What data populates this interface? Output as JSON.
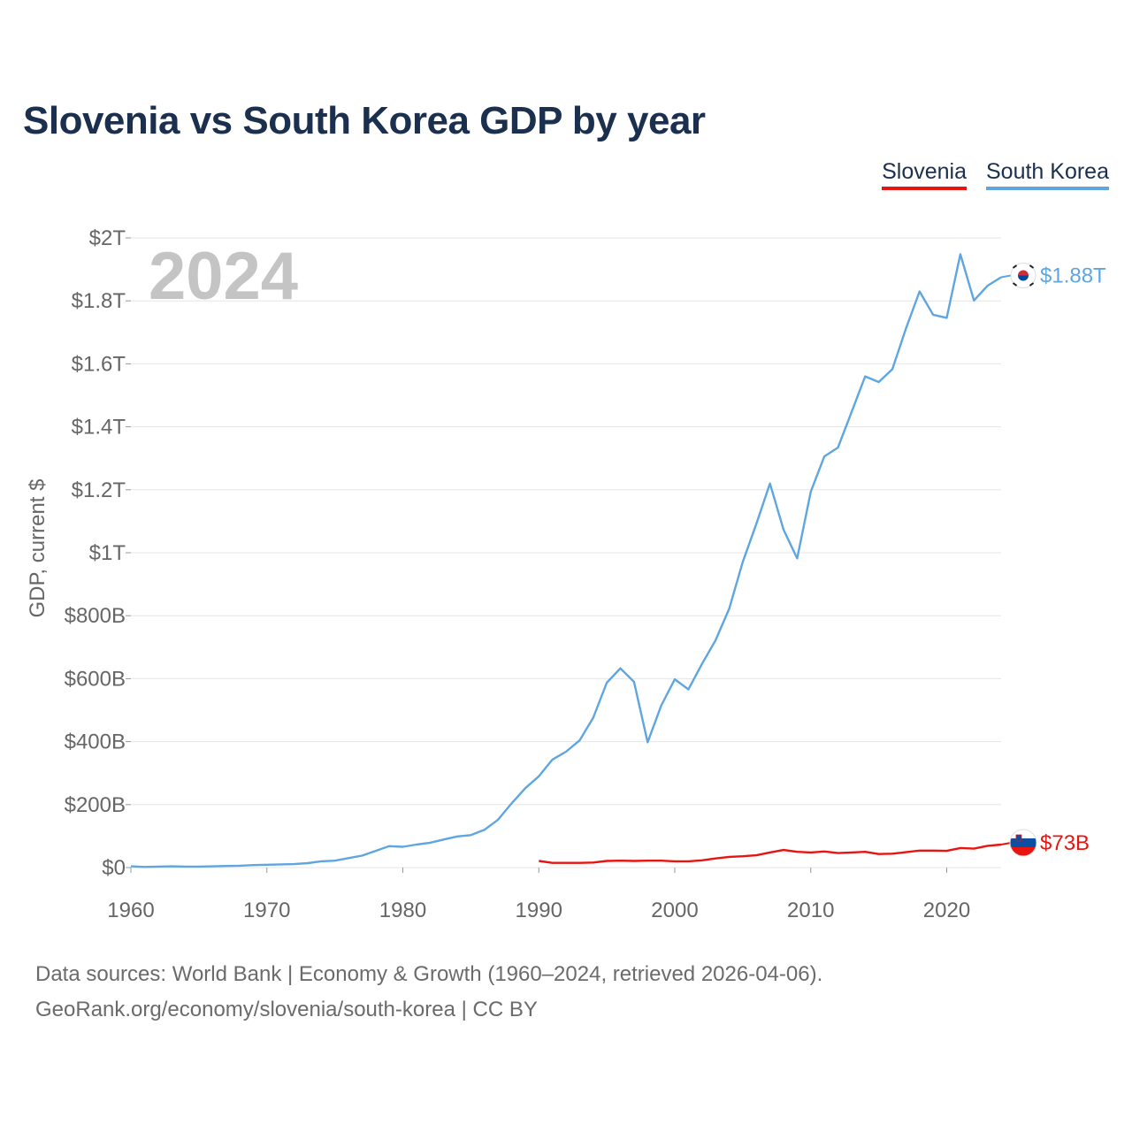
{
  "title": "Slovenia vs South Korea GDP by year",
  "legend": {
    "slovenia": "Slovenia",
    "south_korea": "South Korea"
  },
  "current_year": "2024",
  "end_labels": {
    "south_korea": "$1.88T",
    "slovenia": "$73B"
  },
  "source": {
    "line1": "Data sources: World Bank | Economy & Growth (1960–2024, retrieved 2026-04-06).",
    "line2": "GeoRank.org/economy/slovenia/south-korea | CC BY"
  },
  "colors": {
    "slovenia": "#e8140f",
    "south_korea": "#5fa6e0",
    "title": "#1b2f4e",
    "grid": "#e6e6e6",
    "axis_text": "#666666",
    "year_watermark": "#c4c4c4"
  },
  "chart_data": {
    "type": "line",
    "title": "Slovenia vs South Korea GDP by year",
    "xlabel": "",
    "ylabel": "GDP, current $",
    "xlim": [
      1960,
      2024
    ],
    "ylim": [
      0,
      2000
    ],
    "y_unit": "billion USD",
    "x_ticks": [
      1960,
      1970,
      1980,
      1990,
      2000,
      2010,
      2020
    ],
    "y_ticks": [
      {
        "value": 0,
        "label": "$0"
      },
      {
        "value": 200,
        "label": "$200B"
      },
      {
        "value": 400,
        "label": "$400B"
      },
      {
        "value": 600,
        "label": "$600B"
      },
      {
        "value": 800,
        "label": "$800B"
      },
      {
        "value": 1000,
        "label": "$1T"
      },
      {
        "value": 1200,
        "label": "$1.2T"
      },
      {
        "value": 1400,
        "label": "$1.4T"
      },
      {
        "value": 1600,
        "label": "$1.6T"
      },
      {
        "value": 1800,
        "label": "$1.8T"
      },
      {
        "value": 2000,
        "label": "$2T"
      }
    ],
    "series": [
      {
        "name": "South Korea",
        "key": "south_korea",
        "x": [
          1960,
          1961,
          1962,
          1963,
          1964,
          1965,
          1966,
          1967,
          1968,
          1969,
          1970,
          1971,
          1972,
          1973,
          1974,
          1975,
          1976,
          1977,
          1978,
          1979,
          1980,
          1981,
          1982,
          1983,
          1984,
          1985,
          1986,
          1987,
          1988,
          1989,
          1990,
          1991,
          1992,
          1993,
          1994,
          1995,
          1996,
          1997,
          1998,
          1999,
          2000,
          2001,
          2002,
          2003,
          2004,
          2005,
          2006,
          2007,
          2008,
          2009,
          2010,
          2011,
          2012,
          2013,
          2014,
          2015,
          2016,
          2017,
          2018,
          2019,
          2020,
          2021,
          2022,
          2023,
          2024
        ],
        "values": [
          4,
          2,
          3,
          4,
          3,
          3,
          4,
          5,
          6,
          8,
          9,
          10,
          11,
          14,
          20,
          22,
          30,
          38,
          53,
          68,
          66,
          73,
          79,
          89,
          99,
          103,
          120,
          152,
          204,
          252,
          290,
          343,
          368,
          404,
          476,
          587,
          633,
          590,
          398,
          514,
          598,
          566,
          647,
          722,
          822,
          971,
          1092,
          1220,
          1073,
          982,
          1194,
          1306,
          1334,
          1447,
          1560,
          1542,
          1583,
          1712,
          1830,
          1756,
          1746,
          1948,
          1801,
          1848,
          1875
        ]
      },
      {
        "name": "Slovenia",
        "key": "slovenia",
        "x": [
          1990,
          1991,
          1992,
          1993,
          1994,
          1995,
          1996,
          1997,
          1998,
          1999,
          2000,
          2001,
          2002,
          2003,
          2004,
          2005,
          2006,
          2007,
          2008,
          2009,
          2010,
          2011,
          2012,
          2013,
          2014,
          2015,
          2016,
          2017,
          2018,
          2019,
          2020,
          2021,
          2022,
          2023,
          2024
        ],
        "values": [
          21,
          15,
          15,
          15,
          16,
          21,
          22,
          21,
          22,
          22,
          20,
          20,
          23,
          29,
          34,
          36,
          39,
          48,
          56,
          50,
          48,
          51,
          46,
          48,
          50,
          43,
          44,
          49,
          54,
          54,
          53,
          62,
          60,
          69,
          73
        ]
      }
    ]
  }
}
